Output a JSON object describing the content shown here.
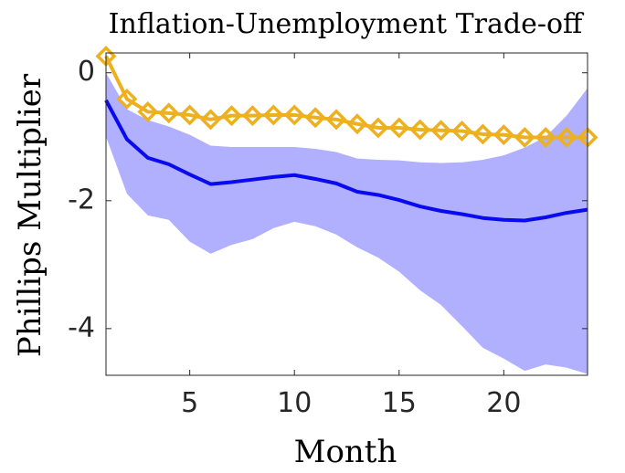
{
  "chart_data": {
    "type": "line",
    "title": "Inflation-Unemployment Trade-off",
    "x_label": "Month",
    "y_label": "Phillips Multiplier",
    "x": [
      1,
      2,
      3,
      4,
      5,
      6,
      7,
      8,
      9,
      10,
      11,
      12,
      13,
      14,
      15,
      16,
      17,
      18,
      19,
      20,
      21,
      22,
      23,
      24
    ],
    "band": {
      "color": "#b0b0ff",
      "upper": [
        0,
        -0.57,
        -0.74,
        -0.84,
        -0.97,
        -1.14,
        -1.16,
        -1.16,
        -1.16,
        -1.16,
        -1.19,
        -1.24,
        -1.34,
        -1.36,
        -1.37,
        -1.4,
        -1.41,
        -1.4,
        -1.36,
        -1.29,
        -1.17,
        -1.0,
        -0.67,
        -0.24
      ],
      "lower": [
        -1.0,
        -1.89,
        -2.23,
        -2.3,
        -2.64,
        -2.83,
        -2.69,
        -2.6,
        -2.43,
        -2.33,
        -2.4,
        -2.53,
        -2.73,
        -2.89,
        -3.11,
        -3.4,
        -3.63,
        -3.96,
        -4.3,
        -4.47,
        -4.66,
        -4.56,
        -4.61,
        -4.71
      ]
    },
    "series": [
      {
        "color": "#0a0af0",
        "marker": "none",
        "values": [
          -0.43,
          -1.04,
          -1.33,
          -1.43,
          -1.59,
          -1.74,
          -1.71,
          -1.67,
          -1.63,
          -1.6,
          -1.66,
          -1.73,
          -1.86,
          -1.91,
          -1.99,
          -2.09,
          -2.16,
          -2.21,
          -2.27,
          -2.3,
          -2.31,
          -2.26,
          -2.19,
          -2.14
        ]
      },
      {
        "color": "#edb120",
        "marker": "diamond",
        "values": [
          0.26,
          -0.41,
          -0.61,
          -0.63,
          -0.66,
          -0.73,
          -0.67,
          -0.67,
          -0.66,
          -0.66,
          -0.7,
          -0.73,
          -0.8,
          -0.86,
          -0.86,
          -0.89,
          -0.9,
          -0.91,
          -0.96,
          -0.97,
          -1.01,
          -1.01,
          -1.01,
          -1.01
        ]
      }
    ],
    "xlim": [
      1,
      24
    ],
    "ylim": [
      -4.73,
      0.31
    ],
    "xticks": [
      5,
      10,
      15,
      20
    ],
    "yticks": [
      -4,
      -2,
      0
    ],
    "grid": false
  }
}
